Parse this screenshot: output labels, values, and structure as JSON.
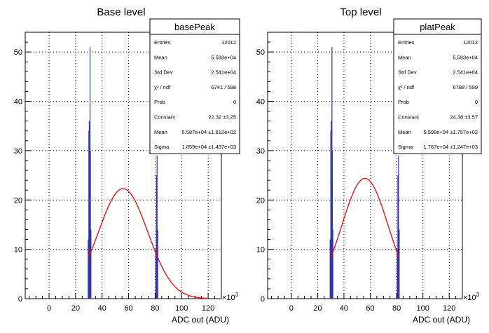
{
  "chart_data": [
    {
      "type": "histogram",
      "title": "Base level",
      "xlabel": "ADC out (ADU)",
      "x_multiplier": "×10",
      "x_multiplier_exp": "3",
      "xlim": [
        -18,
        130
      ],
      "ylim": [
        0,
        54
      ],
      "xticks": [
        "0",
        "20",
        "40",
        "60",
        "80",
        "100",
        "120"
      ],
      "yticks": [
        "0",
        "10",
        "20",
        "30",
        "40",
        "50"
      ],
      "grid": true,
      "histogram_color": "#3333aa",
      "fit_color": "#ff0000",
      "histogram_bins": [
        {
          "x": 29.5,
          "y": 12
        },
        {
          "x": 30.0,
          "y": 34
        },
        {
          "x": 30.3,
          "y": 36
        },
        {
          "x": 30.6,
          "y": 24
        },
        {
          "x": 30.9,
          "y": 51
        },
        {
          "x": 31.2,
          "y": 30
        },
        {
          "x": 31.6,
          "y": 14
        },
        {
          "x": 80.5,
          "y": 10
        },
        {
          "x": 81.0,
          "y": 25
        },
        {
          "x": 81.5,
          "y": 29
        },
        {
          "x": 82.0,
          "y": 14
        }
      ],
      "fit": {
        "constant": 22.32,
        "mean": 55.87,
        "sigma": 18.59,
        "x_range": [
          30,
          120
        ]
      },
      "stats": {
        "name": "basePeak",
        "rows": [
          {
            "label": "Entries",
            "value": "12012"
          },
          {
            "label": "Mean",
            "value": "5.593e+04"
          },
          {
            "label": "Std Dev",
            "value": "2.541e+04"
          },
          {
            "label": "χ² / ndf",
            "value": "6741 / 598"
          },
          {
            "label": "Prob",
            "value": "0"
          },
          {
            "label": "Constant",
            "value": "22.32 ±3.25"
          },
          {
            "label": "Mean",
            "value": "5.587e+04 ±1.812e+02"
          },
          {
            "label": "Sigma",
            "value": "1.859e+04 ±1.437e+03"
          }
        ]
      }
    },
    {
      "type": "histogram",
      "title": "Top level",
      "xlabel": "ADC out (ADU)",
      "x_multiplier": "×10",
      "x_multiplier_exp": "3",
      "xlim": [
        -18,
        130
      ],
      "ylim": [
        0,
        54
      ],
      "xticks": [
        "0",
        "20",
        "40",
        "60",
        "80",
        "100",
        "120"
      ],
      "yticks": [
        "0",
        "10",
        "20",
        "30",
        "40",
        "50"
      ],
      "grid": true,
      "histogram_color": "#3333aa",
      "fit_color": "#ff0000",
      "histogram_bins": [
        {
          "x": 29.5,
          "y": 12
        },
        {
          "x": 30.0,
          "y": 34
        },
        {
          "x": 30.3,
          "y": 36
        },
        {
          "x": 30.6,
          "y": 24
        },
        {
          "x": 30.9,
          "y": 51
        },
        {
          "x": 31.2,
          "y": 30
        },
        {
          "x": 31.6,
          "y": 14
        },
        {
          "x": 80.5,
          "y": 10
        },
        {
          "x": 81.0,
          "y": 25
        },
        {
          "x": 81.5,
          "y": 29
        },
        {
          "x": 82.0,
          "y": 14
        }
      ],
      "fit": {
        "constant": 24.38,
        "mean": 55.98,
        "sigma": 17.67,
        "x_range": [
          30,
          82
        ]
      },
      "stats": {
        "name": "platPeak",
        "rows": [
          {
            "label": "Entries",
            "value": "12012"
          },
          {
            "label": "Mean",
            "value": "5.593e+04"
          },
          {
            "label": "Std Dev",
            "value": "2.541e+04"
          },
          {
            "label": "χ² / ndf",
            "value": "6788 / 599"
          },
          {
            "label": "Prob",
            "value": "0"
          },
          {
            "label": "Constant",
            "value": "24.38 ±3.57"
          },
          {
            "label": "Mean",
            "value": "5.598e+04 ±1.757e+02"
          },
          {
            "label": "Sigma",
            "value": "1.767e+04 ±1.247e+03"
          }
        ]
      }
    }
  ]
}
